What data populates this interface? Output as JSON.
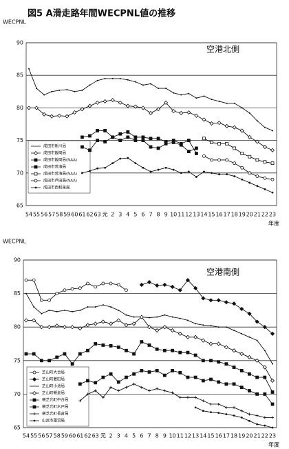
{
  "chart_data": [
    {
      "type": "line",
      "title": "図5 A滑走路年間WECPNL値の推移",
      "ylabel": "WECPNL",
      "xlabel": "年度",
      "annotation": "空港北側",
      "categories": [
        "54",
        "55",
        "56",
        "57",
        "58",
        "59",
        "60",
        "61",
        "62",
        "63",
        "元",
        "2",
        "3",
        "4",
        "5",
        "6",
        "7",
        "8",
        "9",
        "10",
        "11",
        "12",
        "13",
        "14",
        "15",
        "16",
        "17",
        "18",
        "19",
        "20",
        "21",
        "22",
        "23"
      ],
      "ylim": [
        65,
        90
      ],
      "yticks": [
        65,
        70,
        75,
        80,
        85,
        90
      ],
      "grid": true,
      "series": [
        {
          "name": "成田市新川局",
          "color": "#111",
          "marker": "none",
          "values": [
            86,
            83,
            82,
            82.5,
            82.7,
            82.8,
            82.5,
            82.7,
            83.5,
            84.2,
            84.5,
            84.5,
            84.5,
            84.3,
            84,
            83.5,
            83.7,
            83,
            83,
            82.3,
            82,
            82.2,
            81.5,
            81.8,
            81.3,
            81,
            80.7,
            80.7,
            80,
            79.2,
            78,
            77,
            76.5
          ]
        },
        {
          "name": "成田市飯岡局",
          "color": "#111",
          "marker": "diamond-open",
          "values": [
            80,
            80,
            79,
            78.7,
            78.8,
            78.7,
            79.3,
            79.8,
            80.3,
            80.8,
            81,
            81.2,
            80.8,
            80.3,
            80.2,
            80,
            79.2,
            79.8,
            80.8,
            79.5,
            79.2,
            79.3,
            78.8,
            78.2,
            77.6,
            77.7,
            77.2,
            77,
            76.5,
            75.5,
            74.8,
            74,
            73.5
          ]
        },
        {
          "name": "成田市飯岡局(NAA)",
          "color": "#111",
          "marker": "square-filled",
          "values": [
            null,
            null,
            null,
            null,
            null,
            null,
            null,
            75.5,
            75.7,
            76.5,
            76.5,
            75.5,
            76,
            76.3,
            75.5,
            75.5,
            75.3,
            75.3,
            74.8,
            75,
            74.5,
            75,
            73,
            null,
            null,
            null,
            null,
            null,
            null,
            null,
            null,
            null,
            null
          ]
        },
        {
          "name": "成田市荒海局",
          "color": "#111",
          "marker": "square-filled",
          "values": [
            null,
            null,
            null,
            null,
            null,
            null,
            null,
            74,
            73.5,
            75,
            74.8,
            75.5,
            75,
            75.5,
            75,
            75,
            74,
            73.8,
            74.5,
            74.7,
            74.3,
            73.3,
            73.8,
            null,
            null,
            null,
            null,
            null,
            null,
            null,
            null,
            null,
            null
          ]
        },
        {
          "name": "成田市荒海局(NAA)",
          "color": "#111",
          "marker": "square-open",
          "values": [
            null,
            null,
            null,
            null,
            null,
            null,
            null,
            null,
            null,
            null,
            null,
            null,
            null,
            null,
            null,
            null,
            null,
            null,
            null,
            null,
            null,
            null,
            null,
            75.3,
            74.7,
            74.5,
            74.5,
            73.8,
            73,
            72.5,
            72,
            71.7,
            71.5
          ]
        },
        {
          "name": "成田市芦田局(NAA)",
          "color": "#111",
          "marker": "circle-open",
          "values": [
            null,
            null,
            null,
            null,
            null,
            null,
            null,
            null,
            null,
            null,
            null,
            null,
            null,
            null,
            null,
            null,
            null,
            null,
            null,
            null,
            null,
            null,
            null,
            72.6,
            72,
            72,
            72,
            71.5,
            70.8,
            70,
            69.5,
            69.2,
            69
          ]
        },
        {
          "name": "成田市西和泉局",
          "color": "#111",
          "marker": "dot",
          "values": [
            null,
            null,
            null,
            null,
            null,
            null,
            null,
            70,
            70.3,
            70.7,
            70.8,
            71.5,
            72.2,
            72.3,
            71.5,
            70.8,
            70.2,
            70.5,
            70.8,
            70.5,
            70,
            70.2,
            69.4,
            70.2,
            70,
            69.8,
            69.8,
            69.5,
            69,
            68.5,
            68,
            67.5,
            67
          ]
        }
      ]
    },
    {
      "type": "line",
      "ylabel": "WECPNL",
      "xlabel": "年度",
      "annotation": "空港南側",
      "categories": [
        "54",
        "55",
        "56",
        "57",
        "58",
        "59",
        "60",
        "61",
        "62",
        "63",
        "元",
        "2",
        "3",
        "4",
        "5",
        "6",
        "7",
        "8",
        "9",
        "10",
        "11",
        "12",
        "13",
        "14",
        "15",
        "16",
        "17",
        "18",
        "19",
        "20",
        "21",
        "22",
        "23"
      ],
      "ylim": [
        65,
        90
      ],
      "yticks": [
        65,
        70,
        75,
        80,
        85,
        90
      ],
      "grid": true,
      "series": [
        {
          "name": "芝山町大台局",
          "color": "#111",
          "marker": "circle-open",
          "values": [
            87,
            87,
            84,
            84,
            85,
            85.5,
            85.7,
            85.8,
            86.5,
            86,
            86.5,
            86.5,
            86.3,
            85.5,
            null,
            null,
            null,
            null,
            null,
            null,
            null,
            null,
            null,
            null,
            null,
            null,
            null,
            null,
            null,
            null,
            null,
            null,
            null
          ]
        },
        {
          "name": "芝山町菱田局",
          "color": "#111",
          "marker": "diamond-filled",
          "values": [
            null,
            null,
            null,
            null,
            null,
            null,
            null,
            null,
            null,
            null,
            null,
            null,
            null,
            null,
            null,
            86.3,
            86.7,
            86.2,
            86.3,
            86,
            85.5,
            87,
            85.8,
            84.3,
            84,
            84,
            83.7,
            83.5,
            82.7,
            82,
            80.8,
            80,
            79
          ]
        },
        {
          "name": "芝山町小池局",
          "color": "#111",
          "marker": "none",
          "values": [
            85,
            83,
            82,
            82.5,
            82.3,
            82.5,
            82.3,
            82.5,
            83,
            83,
            83.3,
            83,
            82.5,
            81.8,
            81.5,
            81.5,
            81.4,
            81.5,
            81.8,
            81.5,
            81.3,
            81,
            80.5,
            80.3,
            80.2,
            80,
            80,
            79.5,
            79,
            78.5,
            78,
            76.5,
            74.5
          ]
        },
        {
          "name": "芝山町朝倉局",
          "color": "#111",
          "marker": "diamond-open",
          "values": [
            81,
            81,
            80,
            80,
            80.2,
            80,
            80,
            79.8,
            80.3,
            80.5,
            80.8,
            80.5,
            81,
            80.3,
            80.5,
            81.5,
            80,
            79.5,
            80,
            79.5,
            79,
            78.5,
            78.5,
            78,
            77.5,
            77.5,
            77,
            76.5,
            76,
            75.5,
            75,
            74,
            72
          ]
        },
        {
          "name": "横芝光町中台局",
          "color": "#111",
          "marker": "square-filled",
          "values": [
            76,
            76,
            75,
            75,
            75.5,
            76,
            74.5,
            76,
            76.5,
            77.5,
            77.3,
            77.2,
            77,
            76.5,
            76,
            77.8,
            77.3,
            76.7,
            76.5,
            76.5,
            76.2,
            76.2,
            75.8,
            75,
            75,
            74.8,
            74.5,
            74,
            73.5,
            73,
            72.5,
            72.5,
            70.3
          ]
        },
        {
          "name": "横芝光町木戸局",
          "color": "#111",
          "marker": "square-filled",
          "values": [
            null,
            null,
            null,
            null,
            null,
            null,
            null,
            71.5,
            72,
            71.7,
            72.5,
            73,
            71.8,
            72.5,
            73,
            73.5,
            73.3,
            73.5,
            72.8,
            73.5,
            73.2,
            72.5,
            72.5,
            72,
            72.2,
            71.8,
            71.5,
            71.5,
            71,
            70.5,
            70,
            70,
            68.5
          ]
        },
        {
          "name": "横芝光町長倉局",
          "color": "#111",
          "marker": "plus",
          "values": [
            null,
            null,
            null,
            null,
            null,
            null,
            null,
            69,
            70,
            70.5,
            69.5,
            71,
            70.5,
            71,
            71.5,
            71,
            70.5,
            70.8,
            70.5,
            70.2,
            69.5,
            69.5,
            69.5,
            69,
            68.5,
            68.5,
            68,
            68,
            67.5,
            67,
            66.8,
            66.5,
            66.5
          ]
        },
        {
          "name": "山武市蓮沼局",
          "color": "#111",
          "marker": "dot",
          "values": [
            null,
            null,
            null,
            null,
            null,
            null,
            null,
            null,
            null,
            null,
            null,
            null,
            null,
            null,
            null,
            null,
            null,
            null,
            null,
            null,
            null,
            null,
            68,
            67.5,
            67.3,
            67.2,
            67,
            66.8,
            66.5,
            66,
            65.5,
            65.3,
            65
          ]
        }
      ]
    }
  ]
}
